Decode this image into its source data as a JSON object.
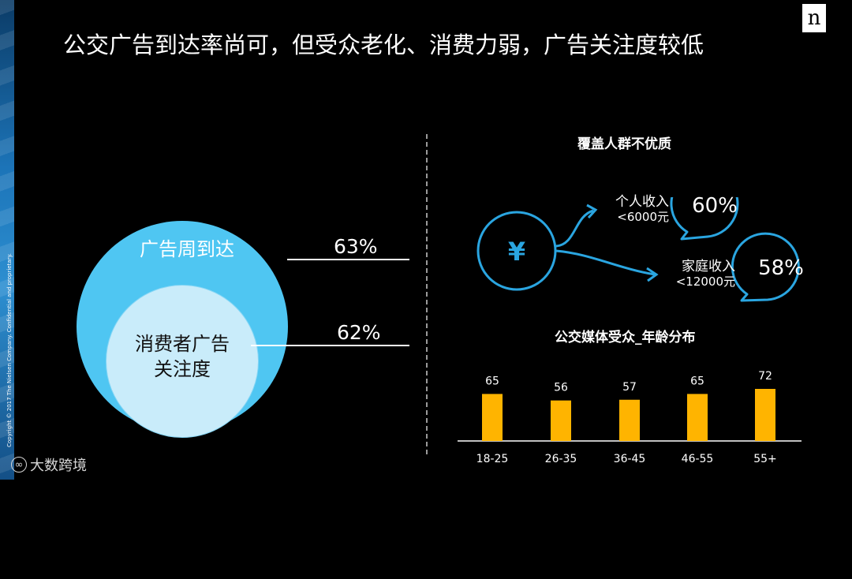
{
  "slide": {
    "title": "公交广告到达率尚可，但受众老化、消费力弱，广告关注度较低",
    "copyright": "Copyright © 2017 The Nielsen Company. Confidential and proprietary.",
    "logo": "n",
    "watermark": "大数跨境"
  },
  "venn": {
    "outer_label": "广告周到达",
    "outer_pct": "63%",
    "inner_label_line1": "消费者广告",
    "inner_label_line2": "关注度",
    "inner_pct": "62%"
  },
  "audience": {
    "title": "覆盖人群不优质",
    "icon": "yen-icon",
    "items": [
      {
        "label": "个人收入",
        "sub": "<6000元",
        "pct": "60%"
      },
      {
        "label": "家庭收入",
        "sub": "<12000元",
        "pct": "58%"
      }
    ]
  },
  "chart_data": {
    "type": "bar",
    "title": "公交媒体受众_年龄分布",
    "categories": [
      "18-25",
      "26-35",
      "36-45",
      "46-55",
      "55+"
    ],
    "values": [
      65,
      56,
      57,
      65,
      72
    ],
    "ylim": [
      0,
      80
    ],
    "bar_color": "#ffb400",
    "grid": false
  },
  "colors": {
    "outer_circle": "#4fc6f2",
    "inner_circle": "#c9ecfa",
    "accent_blue": "#2aa5e0",
    "bar": "#ffb400"
  }
}
